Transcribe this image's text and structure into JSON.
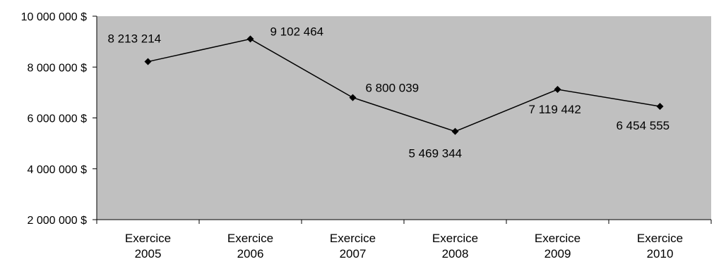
{
  "chart_data": {
    "type": "line",
    "title": "",
    "xlabel": "",
    "ylabel": "",
    "categories": [
      [
        "Exercice",
        "2005"
      ],
      [
        "Exercice",
        "2006"
      ],
      [
        "Exercice",
        "2007"
      ],
      [
        "Exercice",
        "2008"
      ],
      [
        "Exercice",
        "2009"
      ],
      [
        "Exercice",
        "2010"
      ]
    ],
    "series": [
      {
        "values": [
          8213214,
          9102464,
          6800039,
          5469344,
          7119442,
          6454555
        ],
        "labels": [
          "8 213 214",
          "9 102 464",
          "6 800 039",
          "5 469 344",
          "7 119 442",
          "6 454 555"
        ]
      }
    ],
    "ylim": [
      2000000,
      10000000
    ],
    "yticks": [
      {
        "value": 10000000,
        "label": "10 000 000 $"
      },
      {
        "value": 8000000,
        "label": "8 000 000 $"
      },
      {
        "value": 6000000,
        "label": "6 000 000 $"
      },
      {
        "value": 4000000,
        "label": "4 000 000 $"
      },
      {
        "value": 2000000,
        "label": "2 000 000 $"
      }
    ],
    "grid": false,
    "legend": "none",
    "colors": {
      "plot_background": "#c0c0c0",
      "line": "#000000",
      "marker": "#000000"
    }
  }
}
